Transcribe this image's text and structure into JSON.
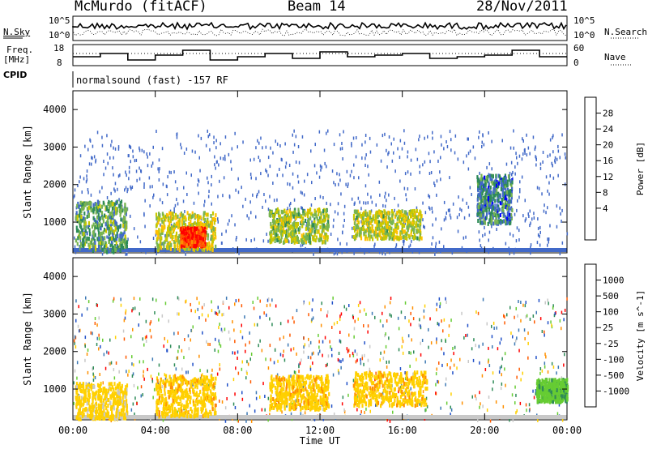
{
  "header": {
    "station": "McMurdo (fitACF)",
    "beam": "Beam 14",
    "date": "28/Nov/2011"
  },
  "panels": {
    "noise": {
      "left_label": "N.Sky",
      "right_label": "N.Search",
      "left_ticks": [
        "10^5",
        "10^0"
      ],
      "right_ticks": [
        "10^5",
        "10^0"
      ]
    },
    "freq": {
      "left_label_1": "Freq.",
      "left_label_2": "[MHz]",
      "right_label": "Nave",
      "left_ticks": [
        "18",
        "8"
      ],
      "right_ticks": [
        "60",
        "0"
      ]
    },
    "cpid": {
      "label": "CPID",
      "program": "normalsound (fast) -157 RF"
    }
  },
  "colorbars": {
    "power": {
      "title": "Power [dB]",
      "ticks": [
        "28",
        "24",
        "20",
        "16",
        "12",
        "8",
        "4"
      ],
      "colors": [
        "#ff0000",
        "#ff5500",
        "#ff8c00",
        "#ffc000",
        "#c8c800",
        "#78b450",
        "#2e8b57",
        "#4169c8",
        "#0000ff"
      ]
    },
    "velocity": {
      "title": "Velocity [m s^-1]",
      "ticks": [
        "1000",
        "500",
        "100",
        "25",
        "-25",
        "-100",
        "-500",
        "-1000"
      ],
      "colors": [
        "#2050c8",
        "#3c78b4",
        "#2e8b57",
        "#66cc33",
        "#c8c8c8",
        "#ffd000",
        "#ff9000",
        "#ff5a00",
        "#ff0000"
      ]
    }
  },
  "chart_data": [
    {
      "type": "heatmap",
      "title": "Power",
      "ylabel": "Slant Range [km]",
      "ylim": [
        180,
        4500
      ],
      "yticks": [
        1000,
        2000,
        3000,
        4000
      ],
      "xlim": [
        "00:00",
        "24:00"
      ],
      "xticks": [
        "00:00",
        "04:00",
        "08:00",
        "12:00",
        "16:00",
        "20:00",
        "00:00"
      ],
      "value_label": "Power [dB]",
      "scale": [
        0,
        30
      ],
      "regions": [
        {
          "t_start_h": 0.1,
          "t_end_h": 2.6,
          "r_min_km": 250,
          "r_max_km": 1600,
          "power_db": 9
        },
        {
          "t_start_h": 4.0,
          "t_end_h": 6.9,
          "r_min_km": 300,
          "r_max_km": 1300,
          "power_db": 15
        },
        {
          "t_start_h": 5.2,
          "t_end_h": 6.4,
          "r_min_km": 400,
          "r_max_km": 900,
          "power_db": 28
        },
        {
          "t_start_h": 9.5,
          "t_end_h": 12.4,
          "r_min_km": 500,
          "r_max_km": 1400,
          "power_db": 13
        },
        {
          "t_start_h": 13.6,
          "t_end_h": 16.9,
          "r_min_km": 600,
          "r_max_km": 1350,
          "power_db": 14
        },
        {
          "t_start_h": 19.6,
          "t_end_h": 21.3,
          "r_min_km": 1000,
          "r_max_km": 2300,
          "power_db": 6
        }
      ]
    },
    {
      "type": "heatmap",
      "title": "Velocity",
      "ylabel": "Slant Range [km]",
      "ylim": [
        180,
        4500
      ],
      "yticks": [
        1000,
        2000,
        3000,
        4000
      ],
      "xlabel": "Time UT",
      "xlim": [
        "00:00",
        "24:00"
      ],
      "xticks": [
        "00:00",
        "04:00",
        "08:00",
        "12:00",
        "16:00",
        "20:00",
        "00:00"
      ],
      "value_label": "Velocity [m s^-1]",
      "scale": [
        -1000,
        1000
      ],
      "regions": [
        {
          "t_start_h": 0.1,
          "t_end_h": 2.6,
          "r_min_km": 250,
          "r_max_km": 1200,
          "velocity_ms": -200
        },
        {
          "t_start_h": 4.0,
          "t_end_h": 6.9,
          "r_min_km": 300,
          "r_max_km": 1400,
          "velocity_ms": -300
        },
        {
          "t_start_h": 9.5,
          "t_end_h": 12.4,
          "r_min_km": 500,
          "r_max_km": 1400,
          "velocity_ms": -300
        },
        {
          "t_start_h": 13.6,
          "t_end_h": 17.2,
          "r_min_km": 600,
          "r_max_km": 1500,
          "velocity_ms": -300
        },
        {
          "t_start_h": 22.5,
          "t_end_h": 24.0,
          "r_min_km": 700,
          "r_max_km": 1300,
          "velocity_ms": 300
        }
      ]
    }
  ]
}
